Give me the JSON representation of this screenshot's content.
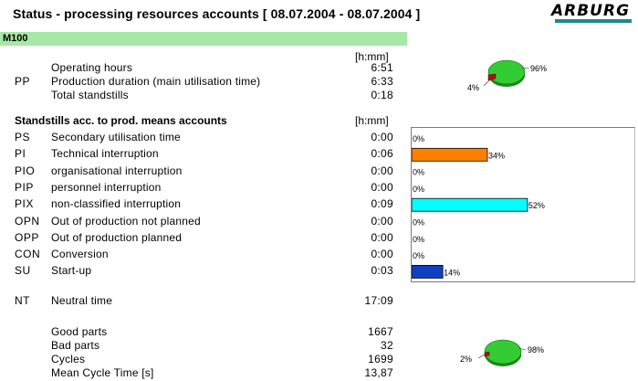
{
  "header": {
    "title": "Status - processing resources accounts [ 08.07.2004 - 08.07.2004 ]",
    "logo_text": "ARBURG"
  },
  "machine": {
    "label": "M100"
  },
  "production": {
    "unit": "[h:mm]",
    "code": "PP",
    "rows": [
      {
        "label": "Operating hours",
        "value": "6:51"
      },
      {
        "label": "Production duration (main utilisation time)",
        "value": "6:33"
      },
      {
        "label": "Total standstills",
        "value": "0:18"
      }
    ],
    "pie": {
      "values": [
        96,
        4
      ],
      "labels": [
        "96%",
        "4%"
      ],
      "colors": [
        "#33cc33",
        "#aa1111"
      ]
    }
  },
  "standstills": {
    "title": "Standstills acc. to prod. means accounts",
    "unit": "[h:mm]",
    "rows": [
      {
        "code": "PS",
        "label": "Secondary utilisation time",
        "value": "0:00"
      },
      {
        "code": "PI",
        "label": "Technical interruption",
        "value": "0:06"
      },
      {
        "code": "PIO",
        "label": "organisational interruption",
        "value": "0:00"
      },
      {
        "code": "PIP",
        "label": "personnel interruption",
        "value": "0:00"
      },
      {
        "code": "PIX",
        "label": "non-classified interruption",
        "value": "0:09"
      },
      {
        "code": "OPN",
        "label": "Out of production not planned",
        "value": "0:00"
      },
      {
        "code": "OPP",
        "label": "Out of production planned",
        "value": "0:00"
      },
      {
        "code": "CON",
        "label": "Conversion",
        "value": "0:00"
      },
      {
        "code": "SU",
        "label": "Start-up",
        "value": "0:03"
      }
    ]
  },
  "chart_data": {
    "type": "bar",
    "categories": [
      "PS",
      "PI",
      "PIO",
      "PIP",
      "PIX",
      "OPN",
      "OPP",
      "CON",
      "SU"
    ],
    "values": [
      0,
      34,
      0,
      0,
      52,
      0,
      0,
      0,
      14
    ],
    "labels": [
      "0%",
      "34%",
      "0%",
      "0%",
      "52%",
      "0%",
      "0%",
      "0%",
      "14%"
    ],
    "colors": [
      "#ffffff",
      "#ff8000",
      "#ffffff",
      "#ffffff",
      "#00ffff",
      "#ffffff",
      "#ffffff",
      "#ffffff",
      "#1040c0"
    ],
    "xlim": [
      0,
      100
    ]
  },
  "neutral": {
    "code": "NT",
    "label": "Neutral time",
    "value": "17:09"
  },
  "parts": {
    "rows": [
      {
        "label": "Good parts",
        "value": "1667"
      },
      {
        "label": "Bad parts",
        "value": "32"
      },
      {
        "label": "Cycles",
        "value": "1699"
      },
      {
        "label": "Mean Cycle Time [s]",
        "value": "13,87"
      }
    ],
    "pie": {
      "values": [
        98,
        2
      ],
      "labels": [
        "98%",
        "2%"
      ],
      "colors": [
        "#33cc33",
        "#aa1111"
      ]
    }
  }
}
